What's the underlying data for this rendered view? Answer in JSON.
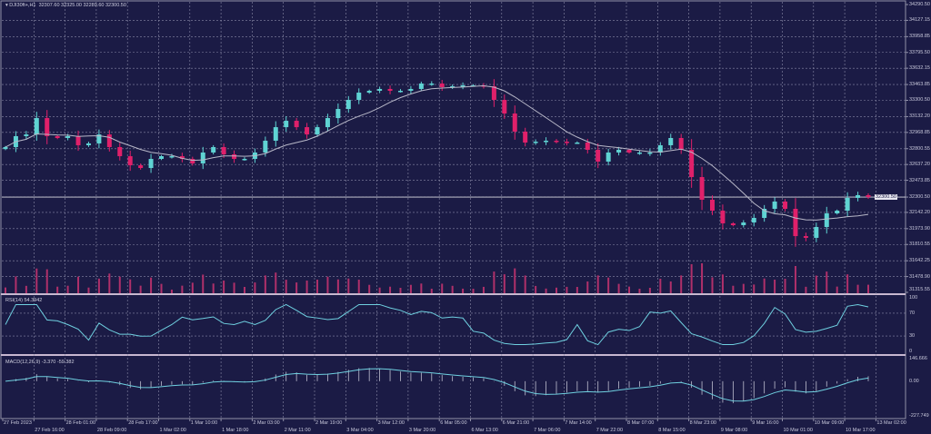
{
  "header": {
    "symbol": "DJI30ft+,H1",
    "ohlc": "32307.60 32325.00 32289.60 32300.50",
    "menu_icon": "triangle-down-icon"
  },
  "colors": {
    "background": "#1b1b45",
    "bull": "#5fd3d3",
    "bear": "#e0206a",
    "ma": "#b8b8c8",
    "grid": "#8a8aa8",
    "indicator": "#6fd0e0",
    "volume": "#b0306a"
  },
  "price_axis": [
    "34290.50",
    "34127.15",
    "33958.85",
    "33795.50",
    "33632.15",
    "33463.85",
    "33300.50",
    "33132.20",
    "32968.85",
    "32800.55",
    "32637.20",
    "32473.85",
    "32300.50",
    "32142.20",
    "31973.90",
    "31810.55",
    "31642.25",
    "31478.90",
    "31315.55"
  ],
  "current_price": "32300.50",
  "rsi": {
    "title": "RSI(14) 54.3942",
    "levels": [
      "100",
      "70",
      "30",
      "0"
    ]
  },
  "macd": {
    "title": "MACD(12,26,9) -3.370 -59.382",
    "levels": [
      "146.666",
      "0.00",
      "-227.749"
    ]
  },
  "time_axis": [
    "27 Feb 2023",
    "27 Feb 16:00",
    "28 Feb 01:00",
    "28 Feb 09:00",
    "28 Feb 17:00",
    "1 Mar 02:00",
    "1 Mar 10:00",
    "1 Mar 18:00",
    "2 Mar 03:00",
    "2 Mar 11:00",
    "2 Mar 19:00",
    "3 Mar 04:00",
    "3 Mar 12:00",
    "3 Mar 20:00",
    "6 Mar 05:00",
    "6 Mar 13:00",
    "6 Mar 21:00",
    "7 Mar 06:00",
    "7 Mar 14:00",
    "7 Mar 22:00",
    "8 Mar 07:00",
    "8 Mar 15:00",
    "8 Mar 23:00",
    "9 Mar 08:00",
    "9 Mar 16:00",
    "10 Mar 01:00",
    "10 Mar 09:00",
    "10 Mar 17:00",
    "13 Mar 02:00"
  ],
  "chart_data": {
    "type": "candlestick",
    "ylim": [
      31315.55,
      34290.5
    ],
    "closes": [
      32817,
      32930,
      32948,
      33117,
      32930,
      32911,
      32930,
      32836,
      32855,
      32948,
      32817,
      32723,
      32629,
      32601,
      32695,
      32723,
      32723,
      32695,
      32648,
      32761,
      32817,
      32742,
      32695,
      32695,
      32761,
      32883,
      33023,
      33089,
      33023,
      32948,
      33023,
      33117,
      33211,
      33305,
      33380,
      33399,
      33418,
      33399,
      33399,
      33418,
      33474,
      33474,
      33436,
      33446,
      33455,
      33455,
      33446,
      33305,
      33164,
      32977,
      32864,
      32873,
      32883,
      32873,
      32864,
      32864,
      32789,
      32667,
      32761,
      32789,
      32761,
      32761,
      32761,
      32836,
      32911,
      32789,
      32507,
      32273,
      32160,
      32029,
      32010,
      32038,
      32085,
      32179,
      32254,
      32179,
      31897,
      31879,
      31991,
      32132,
      32160,
      32292,
      32320,
      32300
    ]
  }
}
